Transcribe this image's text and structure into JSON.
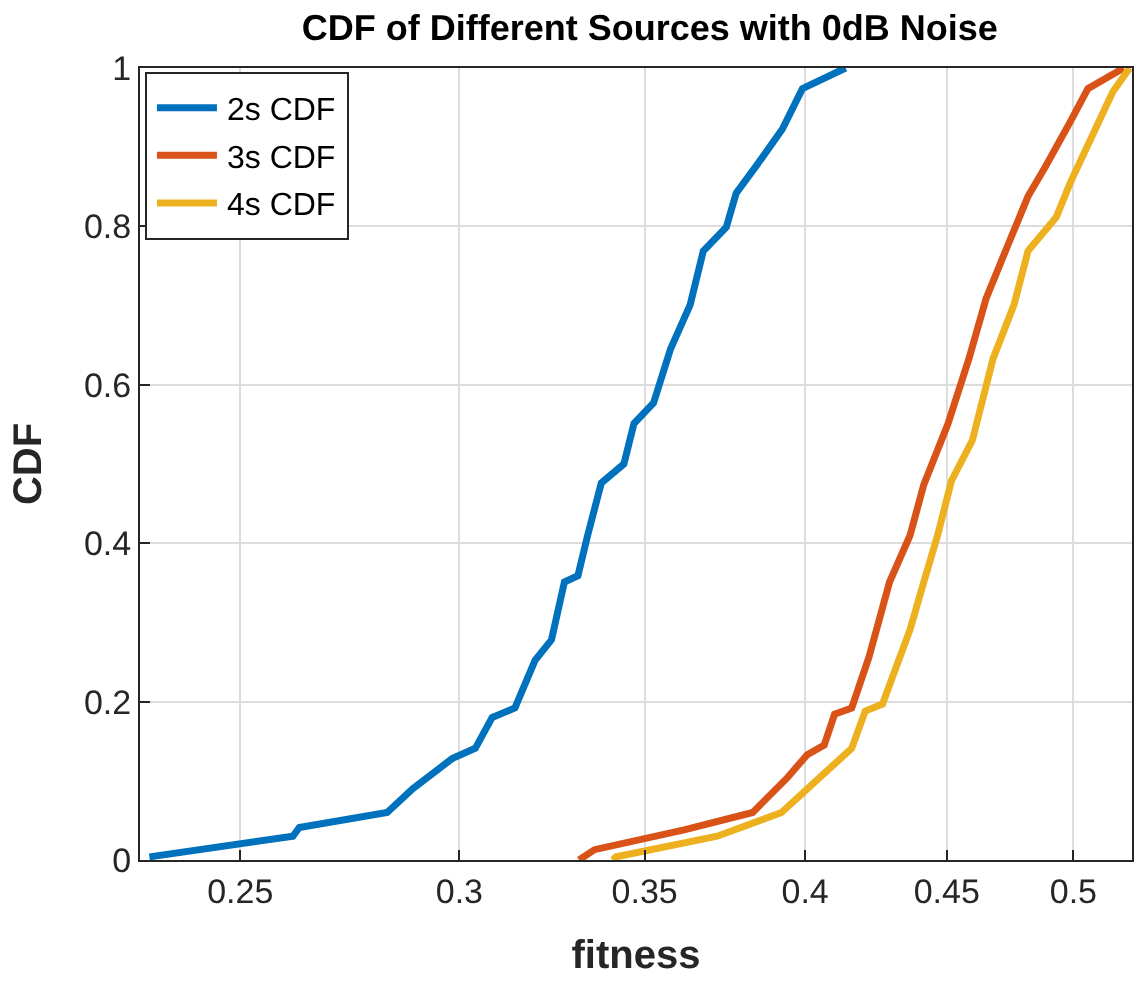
{
  "chart_data": {
    "type": "line",
    "title": "CDF of Different Sources with 0dB Noise",
    "xlabel": "fitness",
    "ylabel": "CDF",
    "log": "x",
    "xlim": [
      0.23,
      0.525
    ],
    "xticks": [
      0.25,
      0.3,
      0.35,
      0.4,
      0.45,
      0.5
    ],
    "ylim": [
      0,
      1
    ],
    "yticks": [
      0,
      0.2,
      0.4,
      0.6,
      0.8,
      1
    ],
    "grid": true,
    "legend": "top left",
    "marker": "none",
    "line_style": "solid",
    "series": [
      {
        "name": "2s CDF",
        "color": "#0072bd",
        "x": [
          0.2318,
          0.2612,
          0.2626,
          0.2825,
          0.2886,
          0.2982,
          0.304,
          0.3083,
          0.3142,
          0.3195,
          0.3239,
          0.3274,
          0.3311,
          0.3338,
          0.3376,
          0.344,
          0.3469,
          0.3526,
          0.3576,
          0.3635,
          0.3675,
          0.3746,
          0.3777,
          0.384,
          0.3925,
          0.3991,
          0.4137
        ],
        "values": [
          0.004,
          0.03,
          0.041,
          0.06,
          0.09,
          0.128,
          0.141,
          0.18,
          0.192,
          0.252,
          0.278,
          0.351,
          0.359,
          0.41,
          0.476,
          0.5,
          0.551,
          0.577,
          0.645,
          0.701,
          0.769,
          0.799,
          0.842,
          0.876,
          0.923,
          0.974,
          1
        ]
      },
      {
        "name": "3s CDF",
        "color": "#d95319",
        "x": [
          0.3314,
          0.3357,
          0.3617,
          0.3829,
          0.3939,
          0.4007,
          0.4064,
          0.4099,
          0.4158,
          0.4218,
          0.4291,
          0.4365,
          0.4415,
          0.4505,
          0.4584,
          0.465,
          0.4732,
          0.4815,
          0.4886,
          0.4987,
          0.5061,
          0.5214
        ],
        "values": [
          0,
          0.013,
          0.038,
          0.06,
          0.103,
          0.133,
          0.145,
          0.184,
          0.192,
          0.256,
          0.351,
          0.41,
          0.474,
          0.551,
          0.633,
          0.709,
          0.774,
          0.838,
          0.876,
          0.932,
          0.974,
          1
        ]
      },
      {
        "name": "4s CDF",
        "color": "#edb120",
        "x": [
          0.3408,
          0.3418,
          0.3718,
          0.3922,
          0.4019,
          0.4158,
          0.4205,
          0.4266,
          0.4365,
          0.4415,
          0.4466,
          0.4518,
          0.4597,
          0.4677,
          0.4759,
          0.4815,
          0.493,
          0.4987,
          0.5167,
          0.524
        ],
        "values": [
          0,
          0.004,
          0.03,
          0.06,
          0.094,
          0.141,
          0.188,
          0.197,
          0.291,
          0.351,
          0.41,
          0.479,
          0.53,
          0.633,
          0.701,
          0.769,
          0.812,
          0.855,
          0.97,
          1
        ]
      }
    ]
  }
}
